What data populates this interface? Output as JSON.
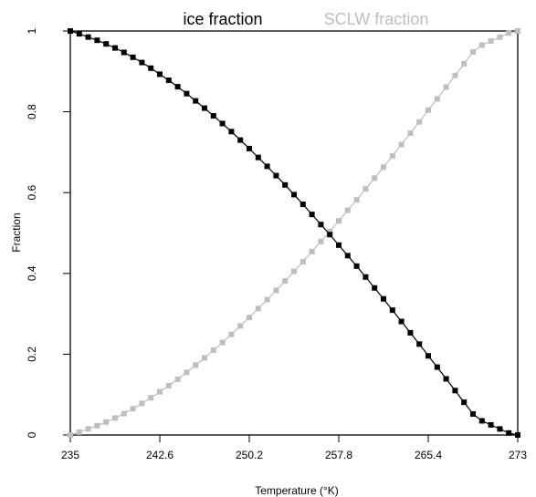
{
  "chart_data": {
    "type": "line",
    "title": "",
    "xlabel": "Temperature (°K)",
    "ylabel": "Fraction",
    "xlim": [
      235,
      273
    ],
    "ylim": [
      0,
      1
    ],
    "xticks": [
      "235",
      "242.6",
      "250.2",
      "257.8",
      "265.4",
      "273"
    ],
    "yticks": [
      "0",
      "0.2",
      "0.4",
      "0.6",
      "0.8",
      "1"
    ],
    "grid": false,
    "legend_position": "top",
    "series": [
      {
        "name": "ice fraction",
        "color": "#000000",
        "x": [
          235,
          235.76,
          236.52,
          237.28,
          238.04,
          238.8,
          239.56,
          240.32,
          241.08,
          241.84,
          242.6,
          243.36,
          244.12,
          244.88,
          245.64,
          246.4,
          247.16,
          247.92,
          248.68,
          249.44,
          250.2,
          250.96,
          251.72,
          252.48,
          253.24,
          254,
          254.76,
          255.52,
          256.28,
          257.04,
          257.8,
          258.56,
          259.32,
          260.08,
          260.84,
          261.6,
          262.36,
          263.12,
          263.88,
          264.64,
          265.4,
          266.16,
          266.92,
          267.68,
          268.44,
          269.2,
          269.96,
          270.72,
          271.48,
          272.24,
          273
        ],
        "y": [
          1.0,
          0.993,
          0.985,
          0.977,
          0.968,
          0.958,
          0.947,
          0.935,
          0.922,
          0.908,
          0.893,
          0.878,
          0.862,
          0.845,
          0.827,
          0.809,
          0.79,
          0.771,
          0.751,
          0.73,
          0.709,
          0.687,
          0.665,
          0.642,
          0.619,
          0.595,
          0.571,
          0.546,
          0.521,
          0.496,
          0.47,
          0.444,
          0.418,
          0.391,
          0.364,
          0.337,
          0.309,
          0.281,
          0.253,
          0.225,
          0.196,
          0.168,
          0.139,
          0.11,
          0.081,
          0.052,
          0.035,
          0.025,
          0.015,
          0.005,
          0.0
        ]
      },
      {
        "name": "SCLW fraction",
        "color": "#bebebe",
        "x": [
          235,
          235.76,
          236.52,
          237.28,
          238.04,
          238.8,
          239.56,
          240.32,
          241.08,
          241.84,
          242.6,
          243.36,
          244.12,
          244.88,
          245.64,
          246.4,
          247.16,
          247.92,
          248.68,
          249.44,
          250.2,
          250.96,
          251.72,
          252.48,
          253.24,
          254,
          254.76,
          255.52,
          256.28,
          257.04,
          257.8,
          258.56,
          259.32,
          260.08,
          260.84,
          261.6,
          262.36,
          263.12,
          263.88,
          264.64,
          265.4,
          266.16,
          266.92,
          267.68,
          268.44,
          269.2,
          269.96,
          270.72,
          271.48,
          272.24,
          273
        ],
        "y": [
          0.0,
          0.007,
          0.015,
          0.023,
          0.032,
          0.042,
          0.053,
          0.065,
          0.078,
          0.092,
          0.107,
          0.122,
          0.138,
          0.155,
          0.173,
          0.191,
          0.21,
          0.229,
          0.249,
          0.27,
          0.291,
          0.313,
          0.335,
          0.358,
          0.381,
          0.405,
          0.429,
          0.454,
          0.479,
          0.504,
          0.53,
          0.556,
          0.582,
          0.609,
          0.636,
          0.663,
          0.691,
          0.719,
          0.747,
          0.775,
          0.804,
          0.832,
          0.861,
          0.89,
          0.919,
          0.948,
          0.965,
          0.975,
          0.985,
          0.995,
          1.0
        ]
      }
    ]
  }
}
